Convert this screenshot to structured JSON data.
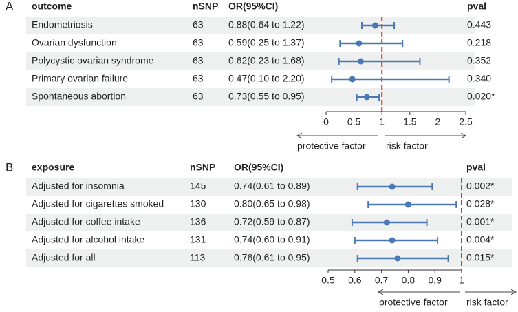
{
  "chart_data": [
    {
      "type": "forest",
      "panel": "A",
      "columns": [
        "outcome",
        "nSNP",
        "OR(95%CI)",
        "pval"
      ],
      "categories": [
        "Endometriosis",
        "Ovarian dysfunction",
        "Polycystic ovarian syndrome",
        "Primary ovarian failure",
        "Spontaneous abortion"
      ],
      "nsnp": [
        63,
        63,
        63,
        63,
        63
      ],
      "values": [
        0.88,
        0.59,
        0.62,
        0.47,
        0.73
      ],
      "lower": [
        0.64,
        0.25,
        0.23,
        0.1,
        0.55
      ],
      "upper": [
        1.22,
        1.37,
        1.68,
        2.2,
        0.95
      ],
      "value_labels": [
        "0.88(0.64 to 1.22)",
        "0.59(0.25 to 1.37)",
        "0.62(0.23 to 1.68)",
        "0.47(0.10 to 2.20)",
        "0.73(0.55 to 0.95)"
      ],
      "pval": [
        "0.443",
        "0.218",
        "0.352",
        "0.340",
        "0.020*"
      ],
      "color": "#4a78b5",
      "ref_line": 1,
      "ref_color": "#e0302a",
      "xlim": [
        0,
        2.5
      ],
      "xticks": [
        0,
        0.5,
        1,
        1.5,
        2,
        2.5
      ],
      "arrow_labels": [
        "protective factor",
        "risk factor"
      ]
    },
    {
      "type": "forest",
      "panel": "B",
      "columns": [
        "exposure",
        "nSNP",
        "OR(95%CI)",
        "pval"
      ],
      "categories": [
        "Adjusted for insomnia",
        "Adjusted for cigarettes smoked",
        "Adjusted for coffee intake",
        "Adjusted for alcohol intake",
        "Adjusted for all"
      ],
      "nsnp": [
        145,
        130,
        136,
        131,
        113
      ],
      "values": [
        0.74,
        0.8,
        0.72,
        0.74,
        0.76
      ],
      "lower": [
        0.61,
        0.65,
        0.59,
        0.6,
        0.61
      ],
      "upper": [
        0.89,
        0.98,
        0.87,
        0.91,
        0.95
      ],
      "value_labels": [
        "0.74(0.61 to 0.89)",
        "0.80(0.65 to 0.98)",
        "0.72(0.59 to 0.87)",
        "0.74(0.60 to 0.91)",
        "0.76(0.61 to 0.95)"
      ],
      "pval": [
        "0.002*",
        "0.028*",
        "0.001*",
        "0.004*",
        "0.015*"
      ],
      "color": "#4a78b5",
      "ref_line": 1,
      "ref_color": "#e0302a",
      "xlim": [
        0.5,
        1
      ],
      "xticks": [
        0.5,
        0.6,
        0.7,
        0.8,
        0.9,
        1
      ],
      "arrow_labels": [
        "protective factor",
        "risk factor"
      ]
    }
  ]
}
